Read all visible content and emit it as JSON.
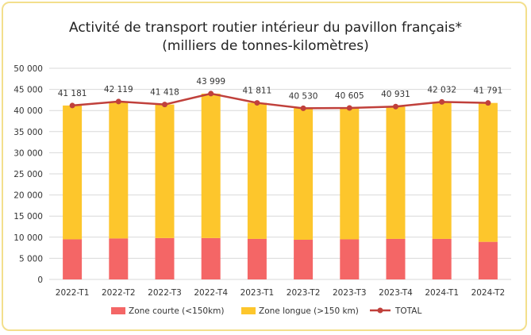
{
  "colors": {
    "zone_courte": "#f46666",
    "zone_longue": "#fdc62c",
    "total": "#c0403b",
    "grid": "#d9d9d9",
    "border": "#f3df8c"
  },
  "chart_data": {
    "type": "bar",
    "title": "Activité de transport routier intérieur du pavillon français*",
    "subtitle": "(milliers de tonnes-kilomètres)",
    "stacked": true,
    "categories": [
      "2022-T1",
      "2022-T2",
      "2022-T3",
      "2022-T4",
      "2023-T1",
      "2023-T2",
      "2023-T3",
      "2023-T4",
      "2024-T1",
      "2024-T2"
    ],
    "series": [
      {
        "name": "Zone courte (<150km)",
        "type": "bar",
        "color": "#f46666",
        "values": [
          9500,
          9700,
          9800,
          9800,
          9600,
          9400,
          9500,
          9600,
          9600,
          8900
        ]
      },
      {
        "name": "Zone longue (>150 km)",
        "type": "bar",
        "color": "#fdc62c",
        "values": [
          31681,
          32419,
          31618,
          34199,
          32211,
          31130,
          31105,
          31331,
          32432,
          32891
        ]
      },
      {
        "name": "TOTAL",
        "type": "line",
        "color": "#c0403b",
        "values": [
          41181,
          42119,
          41418,
          43999,
          41811,
          40530,
          40605,
          40931,
          42032,
          41791
        ]
      }
    ],
    "data_labels": [
      "41 181",
      "42 119",
      "41 418",
      "43 999",
      "41 811",
      "40 530",
      "40 605",
      "40 931",
      "42 032",
      "41 791"
    ],
    "ylim": [
      0,
      50000
    ],
    "y_ticks": [
      "0",
      "5 000",
      "10 000",
      "15 000",
      "20 000",
      "25 000",
      "30 000",
      "35 000",
      "40 000",
      "45 000",
      "50 000"
    ],
    "grid": true,
    "legend_position": "bottom"
  }
}
